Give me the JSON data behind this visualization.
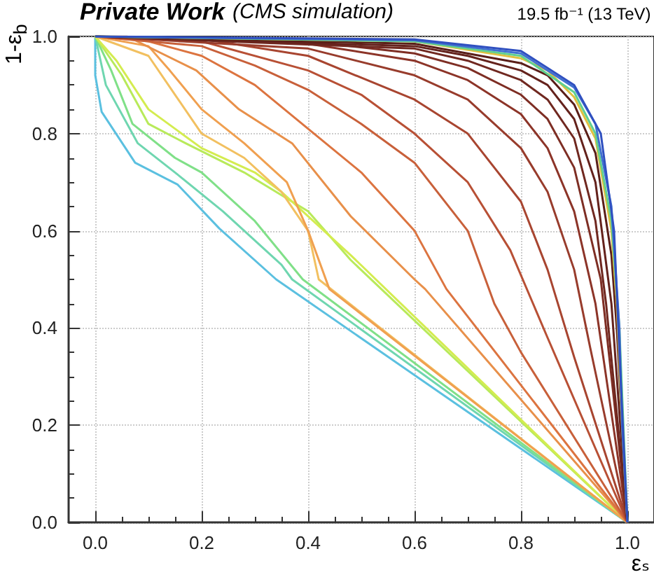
{
  "chart_data": {
    "type": "line",
    "title": "Private Work",
    "subtitle": "(CMS simulation)",
    "annotations": [
      "19.5 fb⁻¹ (13 TeV)"
    ],
    "xlabel": "εₛ",
    "ylabel": "1-ε$_{b}$",
    "xlim": [
      -0.05,
      1.05
    ],
    "ylim": [
      0,
      1
    ],
    "xticks": [
      {
        "value": 0,
        "label": "0.0"
      },
      {
        "value": 0.2,
        "label": "0.2"
      },
      {
        "value": 0.4,
        "label": "0.4"
      },
      {
        "value": 0.6,
        "label": "0.6"
      },
      {
        "value": 0.8,
        "label": "0.8"
      },
      {
        "value": 1,
        "label": "1.0"
      }
    ],
    "yticks": [
      {
        "value": 0,
        "label": "0.0"
      },
      {
        "value": 0.2,
        "label": "0.2"
      },
      {
        "value": 0.4,
        "label": "0.4"
      },
      {
        "value": 0.6,
        "label": "0.6"
      },
      {
        "value": 0.8,
        "label": "0.8"
      },
      {
        "value": 1,
        "label": "1.0"
      }
    ],
    "grid": true,
    "series": [
      {
        "color": "#5bc0e0",
        "x": [
          0,
          0,
          0.012,
          0.075,
          0.155,
          0.233,
          0.34,
          1
        ],
        "values": [
          1,
          0.92,
          0.845,
          0.74,
          0.695,
          0.605,
          0.5,
          0
        ]
      },
      {
        "color": "#6fd6b0",
        "x": [
          0,
          0.02,
          0.08,
          0.15,
          0.24,
          0.35,
          0.37,
          1
        ],
        "values": [
          1,
          0.9,
          0.78,
          0.72,
          0.64,
          0.53,
          0.5,
          0
        ]
      },
      {
        "color": "#80e088",
        "x": [
          0,
          0.03,
          0.07,
          0.15,
          0.2,
          0.3,
          0.39,
          1
        ],
        "values": [
          1,
          0.93,
          0.82,
          0.75,
          0.72,
          0.62,
          0.5,
          0
        ]
      },
      {
        "color": "#b8ea5a",
        "x": [
          0,
          0.05,
          0.1,
          0.17,
          0.28,
          0.4,
          0.48,
          1
        ],
        "values": [
          1,
          0.92,
          0.82,
          0.78,
          0.72,
          0.64,
          0.54,
          0
        ]
      },
      {
        "color": "#d4ec50",
        "x": [
          0,
          0.04,
          0.1,
          0.2,
          0.3,
          0.35,
          0.48,
          1
        ],
        "values": [
          1,
          0.95,
          0.85,
          0.77,
          0.72,
          0.68,
          0.55,
          0
        ]
      },
      {
        "color": "#f2c060",
        "x": [
          0,
          0.1,
          0.15,
          0.2,
          0.28,
          0.35,
          0.4,
          0.42,
          1
        ],
        "values": [
          1,
          0.96,
          0.88,
          0.8,
          0.75,
          0.68,
          0.6,
          0.5,
          0
        ]
      },
      {
        "color": "#f0a050",
        "x": [
          0,
          0.1,
          0.14,
          0.2,
          0.28,
          0.36,
          0.4,
          0.44,
          1
        ],
        "values": [
          1,
          0.98,
          0.93,
          0.85,
          0.78,
          0.7,
          0.6,
          0.48,
          0
        ]
      },
      {
        "color": "#e8904a",
        "x": [
          0,
          0.06,
          0.19,
          0.27,
          0.37,
          0.48,
          0.6,
          0.62,
          1
        ],
        "values": [
          1,
          1,
          0.93,
          0.85,
          0.78,
          0.63,
          0.5,
          0.48,
          0
        ]
      },
      {
        "color": "#dc7440",
        "x": [
          0,
          0.1,
          0.2,
          0.3,
          0.4,
          0.5,
          0.6,
          0.66,
          1
        ],
        "values": [
          1,
          0.99,
          0.96,
          0.9,
          0.81,
          0.72,
          0.6,
          0.48,
          0
        ]
      },
      {
        "color": "#c8603a",
        "x": [
          0,
          0.2,
          0.3,
          0.4,
          0.5,
          0.6,
          0.7,
          0.75,
          0.8,
          1
        ],
        "values": [
          1,
          0.98,
          0.94,
          0.89,
          0.82,
          0.74,
          0.6,
          0.45,
          0.35,
          0
        ]
      },
      {
        "color": "#b85035",
        "x": [
          0,
          0.2,
          0.4,
          0.5,
          0.6,
          0.7,
          0.78,
          0.85,
          1
        ],
        "values": [
          1,
          0.99,
          0.93,
          0.88,
          0.8,
          0.7,
          0.56,
          0.38,
          0
        ]
      },
      {
        "color": "#a84530",
        "x": [
          0,
          0.2,
          0.4,
          0.6,
          0.7,
          0.8,
          0.85,
          0.9,
          1
        ],
        "values": [
          1,
          0.995,
          0.96,
          0.87,
          0.8,
          0.66,
          0.52,
          0.34,
          0
        ]
      },
      {
        "color": "#983c2c",
        "x": [
          0,
          0.4,
          0.6,
          0.7,
          0.8,
          0.85,
          0.9,
          0.93,
          1
        ],
        "values": [
          1,
          0.975,
          0.92,
          0.87,
          0.77,
          0.68,
          0.52,
          0.36,
          0
        ]
      },
      {
        "color": "#8c3428",
        "x": [
          0,
          0.4,
          0.6,
          0.7,
          0.8,
          0.85,
          0.9,
          0.94,
          1
        ],
        "values": [
          1,
          0.985,
          0.95,
          0.91,
          0.84,
          0.77,
          0.64,
          0.45,
          0
        ]
      },
      {
        "color": "#7e2e24",
        "x": [
          0,
          0.4,
          0.6,
          0.7,
          0.8,
          0.85,
          0.9,
          0.95,
          1
        ],
        "values": [
          1,
          0.99,
          0.965,
          0.935,
          0.88,
          0.83,
          0.73,
          0.5,
          0
        ]
      },
      {
        "color": "#702820",
        "x": [
          0,
          0.6,
          0.7,
          0.8,
          0.85,
          0.9,
          0.94,
          0.96,
          1
        ],
        "values": [
          1,
          0.975,
          0.95,
          0.91,
          0.87,
          0.79,
          0.62,
          0.45,
          0
        ]
      },
      {
        "color": "#64221c",
        "x": [
          0,
          0.6,
          0.7,
          0.8,
          0.85,
          0.9,
          0.94,
          0.97,
          1
        ],
        "values": [
          1,
          0.98,
          0.96,
          0.93,
          0.9,
          0.83,
          0.7,
          0.45,
          0
        ]
      },
      {
        "color": "#5a1e18",
        "x": [
          0,
          0.6,
          0.8,
          0.85,
          0.9,
          0.94,
          0.97,
          0.98,
          1
        ],
        "values": [
          1,
          0.985,
          0.945,
          0.92,
          0.86,
          0.76,
          0.55,
          0.4,
          0
        ]
      },
      {
        "color": "#e0c040",
        "x": [
          0,
          0.6,
          0.8,
          0.85,
          0.9,
          0.94,
          0.97,
          0.98,
          0.99,
          1
        ],
        "values": [
          1,
          0.99,
          0.955,
          0.93,
          0.875,
          0.79,
          0.6,
          0.45,
          0.2,
          0
        ]
      },
      {
        "color": "#60d090",
        "x": [
          0,
          0.6,
          0.8,
          0.9,
          0.94,
          0.97,
          0.985,
          1
        ],
        "values": [
          1,
          0.99,
          0.96,
          0.885,
          0.8,
          0.62,
          0.4,
          0
        ]
      },
      {
        "color": "#4070d0",
        "x": [
          0,
          0.6,
          0.8,
          0.9,
          0.94,
          0.97,
          0.985,
          0.99,
          1
        ],
        "values": [
          1,
          0.992,
          0.965,
          0.895,
          0.82,
          0.65,
          0.4,
          0.2,
          0
        ]
      },
      {
        "color": "#3050c0",
        "x": [
          0,
          0.6,
          0.8,
          0.9,
          0.95,
          0.975,
          0.985,
          1
        ],
        "values": [
          1,
          0.994,
          0.97,
          0.9,
          0.8,
          0.6,
          0.35,
          0
        ]
      }
    ]
  }
}
